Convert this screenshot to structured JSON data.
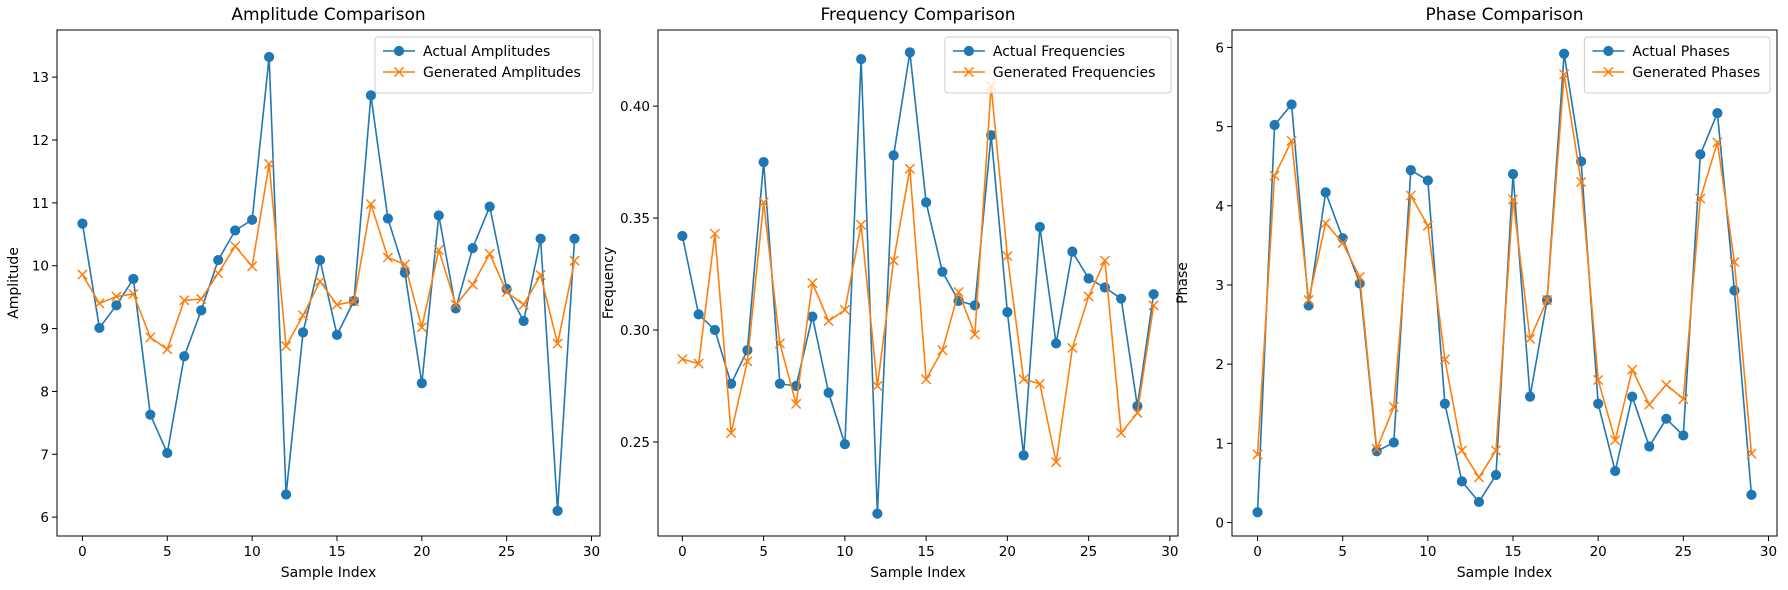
{
  "colors": {
    "actual": "#1f77b4",
    "generated": "#ff7f0e",
    "axis": "#000000",
    "legend_border": "#cccccc"
  },
  "chart_data": [
    {
      "type": "line",
      "title": "Amplitude Comparison",
      "xlabel": "Sample Index",
      "ylabel": "Amplitude",
      "xlim": [
        -1.5,
        30.5
      ],
      "ylim": [
        5.7,
        13.75
      ],
      "xticks": [
        0,
        5,
        10,
        15,
        20,
        25,
        30
      ],
      "yticks": [
        6,
        7,
        8,
        9,
        10,
        11,
        12,
        13
      ],
      "tick_format": "int",
      "legend": "upper right",
      "grid": false,
      "x": [
        0,
        1,
        2,
        3,
        4,
        5,
        6,
        7,
        8,
        9,
        10,
        11,
        12,
        13,
        14,
        15,
        16,
        17,
        18,
        19,
        20,
        21,
        22,
        23,
        24,
        25,
        26,
        27,
        28,
        29
      ],
      "series": [
        {
          "name": "Actual Amplitudes",
          "marker": "circle",
          "color": "#1f77b4",
          "values": [
            10.67,
            9.01,
            9.37,
            9.79,
            7.63,
            7.02,
            8.56,
            9.29,
            10.09,
            10.56,
            10.73,
            13.32,
            6.36,
            8.94,
            10.09,
            8.9,
            9.44,
            12.71,
            10.75,
            9.89,
            8.13,
            10.8,
            9.32,
            10.28,
            10.94,
            9.63,
            9.12,
            10.43,
            6.1,
            10.43
          ]
        },
        {
          "name": "Generated Amplitudes",
          "marker": "x",
          "color": "#ff7f0e",
          "values": [
            9.86,
            9.4,
            9.51,
            9.55,
            8.86,
            8.67,
            9.45,
            9.47,
            9.88,
            10.31,
            9.99,
            11.62,
            8.72,
            9.21,
            9.75,
            9.38,
            9.43,
            10.98,
            10.13,
            10.02,
            9.02,
            10.25,
            9.38,
            9.7,
            10.19,
            9.58,
            9.38,
            9.85,
            8.76,
            10.08
          ]
        }
      ]
    },
    {
      "type": "line",
      "title": "Frequency Comparison",
      "xlabel": "Sample Index",
      "ylabel": "Frequency",
      "xlim": [
        -1.5,
        30.5
      ],
      "ylim": [
        0.208,
        0.434
      ],
      "xticks": [
        0,
        5,
        10,
        15,
        20,
        25,
        30
      ],
      "yticks": [
        0.25,
        0.3,
        0.35,
        0.4
      ],
      "tick_format": "fixed2",
      "legend": "upper right",
      "grid": false,
      "x": [
        0,
        1,
        2,
        3,
        4,
        5,
        6,
        7,
        8,
        9,
        10,
        11,
        12,
        13,
        14,
        15,
        16,
        17,
        18,
        19,
        20,
        21,
        22,
        23,
        24,
        25,
        26,
        27,
        28,
        29
      ],
      "series": [
        {
          "name": "Actual Frequencies",
          "marker": "circle",
          "color": "#1f77b4",
          "values": [
            0.342,
            0.307,
            0.3,
            0.276,
            0.291,
            0.375,
            0.276,
            0.275,
            0.306,
            0.272,
            0.249,
            0.421,
            0.218,
            0.378,
            0.424,
            0.357,
            0.326,
            0.313,
            0.311,
            0.387,
            0.308,
            0.244,
            0.346,
            0.294,
            0.335,
            0.323,
            0.319,
            0.314,
            0.266,
            0.316
          ]
        },
        {
          "name": "Generated Frequencies",
          "marker": "x",
          "color": "#ff7f0e",
          "values": [
            0.287,
            0.285,
            0.343,
            0.254,
            0.286,
            0.357,
            0.294,
            0.267,
            0.321,
            0.304,
            0.309,
            0.347,
            0.275,
            0.331,
            0.372,
            0.278,
            0.291,
            0.317,
            0.298,
            0.409,
            0.333,
            0.278,
            0.276,
            0.241,
            0.292,
            0.315,
            0.331,
            0.254,
            0.263,
            0.311
          ]
        }
      ]
    },
    {
      "type": "line",
      "title": "Phase Comparison",
      "xlabel": "Sample Index",
      "ylabel": "Phase",
      "xlim": [
        -1.5,
        30.5
      ],
      "ylim": [
        -0.17,
        6.22
      ],
      "xticks": [
        0,
        5,
        10,
        15,
        20,
        25,
        30
      ],
      "yticks": [
        0,
        1,
        2,
        3,
        4,
        5,
        6
      ],
      "tick_format": "int",
      "legend": "upper right",
      "grid": false,
      "x": [
        0,
        1,
        2,
        3,
        4,
        5,
        6,
        7,
        8,
        9,
        10,
        11,
        12,
        13,
        14,
        15,
        16,
        17,
        18,
        19,
        20,
        21,
        22,
        23,
        24,
        25,
        26,
        27,
        28,
        29
      ],
      "series": [
        {
          "name": "Actual Phases",
          "marker": "circle",
          "color": "#1f77b4",
          "values": [
            0.13,
            5.02,
            5.28,
            2.74,
            4.17,
            3.59,
            3.02,
            0.9,
            1.01,
            4.45,
            4.32,
            1.5,
            0.52,
            0.26,
            0.6,
            4.4,
            1.59,
            2.81,
            5.92,
            4.56,
            1.5,
            0.65,
            1.59,
            0.96,
            1.31,
            1.1,
            4.65,
            5.17,
            2.93,
            0.35
          ]
        },
        {
          "name": "Generated Phases",
          "marker": "x",
          "color": "#ff7f0e",
          "values": [
            0.86,
            4.38,
            4.82,
            2.81,
            3.78,
            3.53,
            3.1,
            0.93,
            1.46,
            4.13,
            3.75,
            2.06,
            0.91,
            0.57,
            0.91,
            4.08,
            2.32,
            2.81,
            5.66,
            4.3,
            1.8,
            1.04,
            1.93,
            1.49,
            1.74,
            1.56,
            4.09,
            4.8,
            3.29,
            0.87
          ]
        }
      ]
    }
  ]
}
